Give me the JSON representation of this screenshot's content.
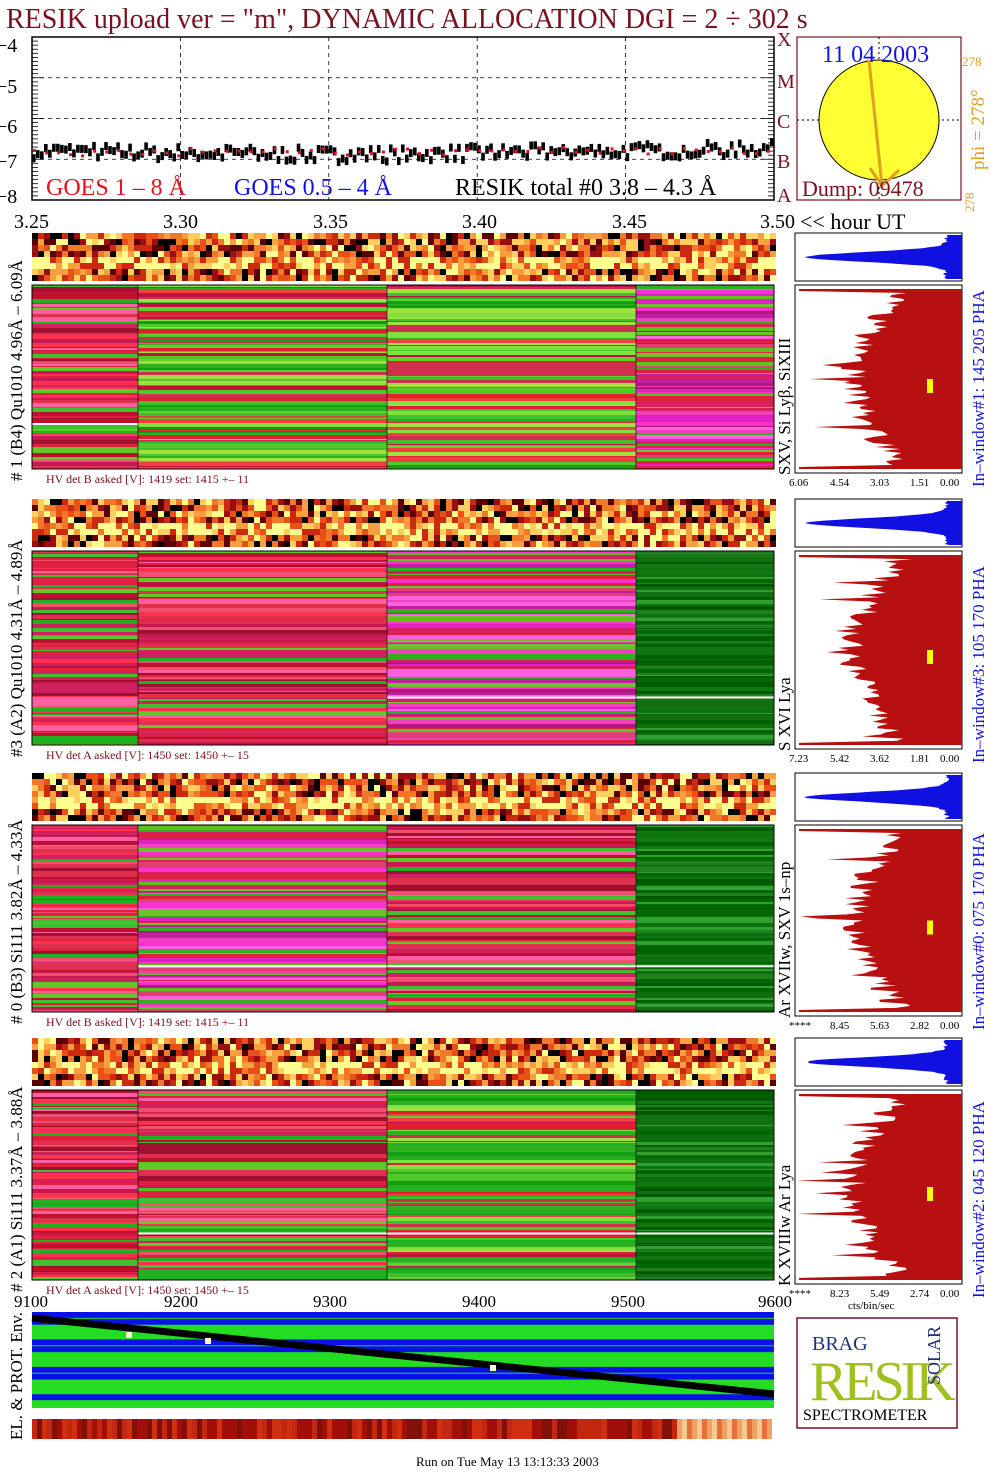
{
  "header": {
    "title": "RESIK upload ver = \"m\", DYNAMIC ALLOCATION  DGI =   2 ÷ 302 s",
    "title_color": "#7a1020"
  },
  "sun_panel": {
    "date": "11 04 2003",
    "dump": "Dump: 09478",
    "phi": "phi = 278°",
    "phi_small_top": "278",
    "phi_small_bottom": "278",
    "goes_letters": [
      "X",
      "M",
      "C",
      "B",
      "A"
    ],
    "disk_color": "#ffff33"
  },
  "legend": {
    "goes_1_8": "GOES 1 – 8 Å",
    "goes_05_4": "GOES 0.5 – 4 Å",
    "resik_total": "RESIK total #0  3.8 – 4.3 Å",
    "colors": {
      "goes_1_8": "#e8101c",
      "goes_05_4": "#1414e0",
      "resik": "#000000"
    }
  },
  "time_axis": {
    "ticks": [
      "3.25",
      "3.30",
      "3.35",
      "3.40",
      "3.45",
      "3.50"
    ],
    "unit_label": "<< hour UT"
  },
  "top_y_axis": {
    "ticks": [
      "−4",
      "−5",
      "−6",
      "−7",
      "−8"
    ]
  },
  "channels": [
    {
      "left_label": "# 1 (B4) Qu1010 4.96Å – 6.09Å",
      "ion_label": "SXV, Si Lyβ, SiXIII",
      "window_label": "In–window#1:  145 205 PHA",
      "hv_text": "HV det B asked [V]:  1419 set:  1415 +–    11",
      "x_ticks": [
        "6.06",
        "4.54",
        "3.03",
        "1.51",
        "0.00"
      ]
    },
    {
      "left_label": "#3 (A2) Qu1010  4.31Å – 4.89Å",
      "ion_label": "S XVI Lya",
      "window_label": "In–window#3:  105 170 PHA",
      "hv_text": "HV det A asked [V]:  1450 set:  1450 +–    15",
      "x_ticks": [
        "7.23",
        "5.42",
        "3.62",
        "1.81",
        "0.00"
      ]
    },
    {
      "left_label": "# 0 (B3) Si111  3.82Å – 4.33Å",
      "ion_label": "Ar XVIIw,  SXV 1s–np",
      "window_label": "In–window#0:  075 170 PHA",
      "hv_text": "HV det B asked [V]:  1419 set:  1415 +–    11",
      "x_ticks": [
        "****",
        "8.45",
        "5.63",
        "2.82",
        "0.00"
      ]
    },
    {
      "left_label": "# 2 (A1) Si111  3.37Å – 3.88Å",
      "ion_label": "K XVIIIw   Ar Lya",
      "window_label": "In–window#2:  045 120 PHA",
      "hv_text": "HV det A asked [V]:  1450 set:  1450 +–    15",
      "x_ticks": [
        "****",
        "8.23",
        "5.49",
        "2.74",
        "0.00"
      ]
    }
  ],
  "cts_label": "cts/bin/sec",
  "bottom_axis": {
    "ticks": [
      "9100",
      "9200",
      "9300",
      "9400",
      "9500",
      "9600"
    ]
  },
  "env_label": "EL. & PROT. Env.",
  "logo": {
    "main": "RESIK",
    "side": "SOLAR",
    "top": "BRAG",
    "bottom": "SPECTROMETER"
  },
  "footer": "Run on Tue May 13 13:13:33 2003",
  "chart_data": {
    "type": "line",
    "title": "RESIK upload ver = \"m\", DYNAMIC ALLOCATION  DGI =   2 ÷ 302 s",
    "xlabel": "<< hour UT",
    "x_range": [
      3.25,
      3.5
    ],
    "ylim": [
      -8,
      -4
    ],
    "series": [
      {
        "name": "GOES 1 – 8 Å",
        "values": [
          -6.85,
          -6.8,
          -6.82,
          -6.78,
          -6.8,
          -6.83
        ]
      },
      {
        "name": "GOES 0.5 – 4 Å",
        "values": [
          -8.0,
          -8.0,
          -8.0,
          -8.0,
          -8.0,
          -8.0
        ]
      },
      {
        "name": "RESIK total #0  3.8 – 4.3 Å",
        "values": [
          -6.8,
          -6.85,
          -6.9,
          -6.85,
          -6.8,
          -6.75
        ]
      }
    ],
    "x": [
      3.25,
      3.3,
      3.35,
      3.4,
      3.45,
      3.5
    ]
  }
}
